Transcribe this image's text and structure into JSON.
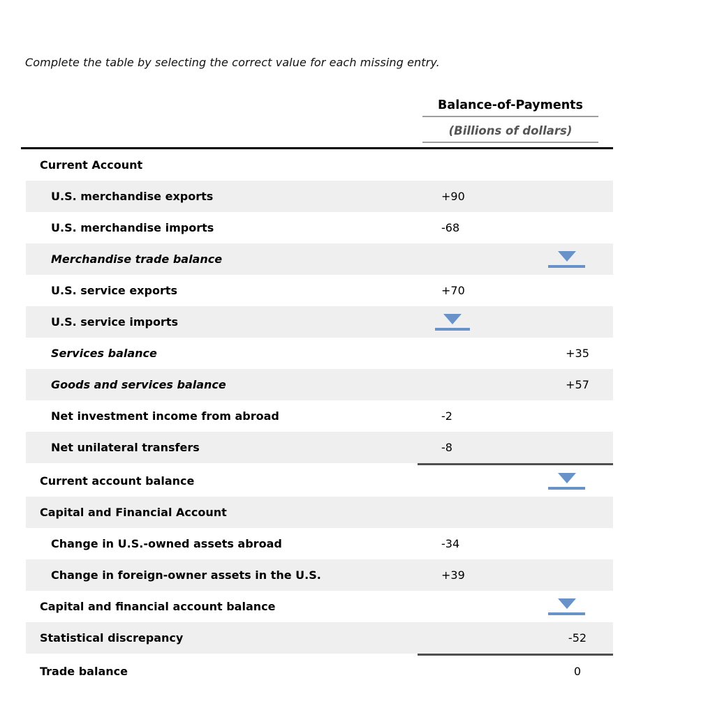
{
  "instruction": "Complete the table by selecting the correct value for each missing entry.",
  "colors": {
    "accent": "#6993c8",
    "row_gray": "#efefef",
    "sum_line": "#4f4f4f",
    "header_rule": "#9e9e9e"
  },
  "table": {
    "header": {
      "title": "Balance-of-Payments",
      "subtitle": "(Billions of dollars)"
    },
    "columns": [
      "label",
      "value-col1",
      "value-col2"
    ],
    "rows": [
      {
        "label": "Current Account",
        "style": "section",
        "bg": "white"
      },
      {
        "label": "U.S. merchandise exports",
        "style": "item",
        "bg": "gray",
        "col1": "+90"
      },
      {
        "label": "U.S. merchandise imports",
        "style": "item",
        "bg": "white",
        "col1": "-68"
      },
      {
        "label": "Merchandise trade balance",
        "style": "item-italic",
        "bg": "gray",
        "drop2": true
      },
      {
        "label": "U.S. service exports",
        "style": "item",
        "bg": "white",
        "col1": "+70"
      },
      {
        "label": "U.S. service imports",
        "style": "item",
        "bg": "gray",
        "drop1": true
      },
      {
        "label": "Services balance",
        "style": "item-italic",
        "bg": "white",
        "col2": "+35"
      },
      {
        "label": "Goods and services balance",
        "style": "item-italic",
        "bg": "gray",
        "col2": "+57"
      },
      {
        "label": "Net investment income from abroad",
        "style": "item",
        "bg": "white",
        "col1": "-2"
      },
      {
        "label": "Net unilateral transfers",
        "style": "item",
        "bg": "gray",
        "col1": "-8",
        "line_after": true
      },
      {
        "label": "Current account balance",
        "style": "section",
        "bg": "white",
        "drop2": true
      },
      {
        "label": "Capital and Financial Account",
        "style": "section",
        "bg": "gray"
      },
      {
        "label": "Change in U.S.-owned assets abroad",
        "style": "item",
        "bg": "white",
        "col1": "-34"
      },
      {
        "label": "Change in foreign-owner assets in the U.S.",
        "style": "item",
        "bg": "gray",
        "col1": "+39"
      },
      {
        "label": "Capital and financial account balance",
        "style": "section",
        "bg": "white",
        "drop2": true
      },
      {
        "label": "Statistical discrepancy",
        "style": "section",
        "bg": "gray",
        "col2": "-52",
        "line_after": true
      },
      {
        "label": "Trade balance",
        "style": "section",
        "bg": "white",
        "col2": "0"
      }
    ]
  }
}
